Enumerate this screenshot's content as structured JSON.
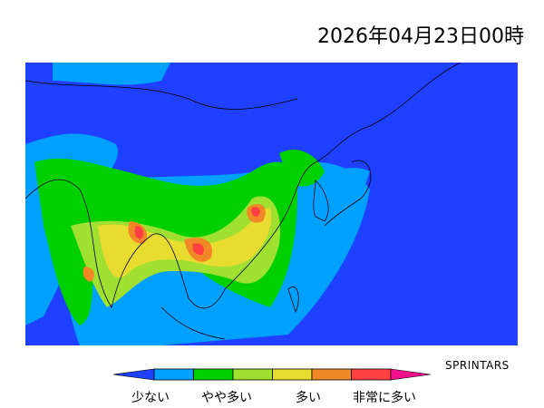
{
  "title": "2026年04月23日00時",
  "credit": "SPRINTARS",
  "legend": {
    "labels": [
      "少ない",
      "やや多い",
      "多い",
      "非常に多い"
    ],
    "colors": [
      "#2040ff",
      "#00a0ff",
      "#00d000",
      "#a0e030",
      "#e8dc30",
      "#f08828",
      "#ff4040",
      "#f0108c"
    ]
  },
  "map": {
    "background_color": "#2040ff",
    "region": "East and South Asia"
  }
}
